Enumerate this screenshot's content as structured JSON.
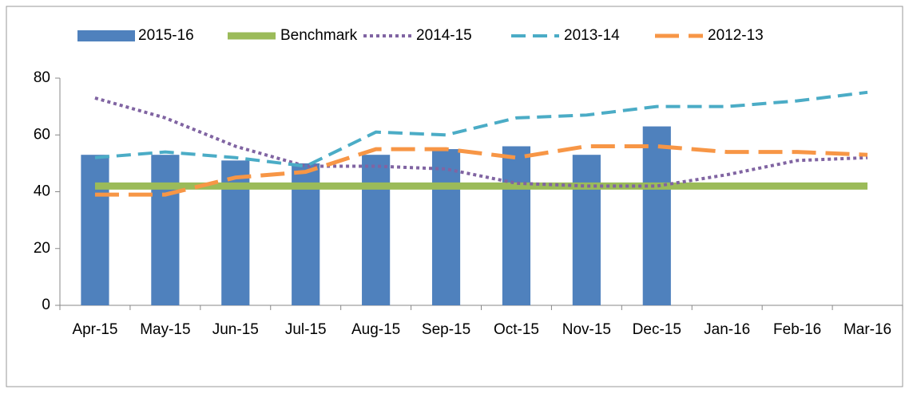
{
  "chart_data": {
    "type": "bar-line",
    "categories": [
      "Apr-15",
      "May-15",
      "Jun-15",
      "Jul-15",
      "Aug-15",
      "Sep-15",
      "Oct-15",
      "Nov-15",
      "Dec-15",
      "Jan-16",
      "Feb-16",
      "Mar-16"
    ],
    "series": [
      {
        "name": "2015-16",
        "type": "bar",
        "color": "#4f81bd",
        "values": [
          53,
          53,
          51,
          50,
          53,
          55,
          56,
          53,
          63,
          null,
          null,
          null
        ]
      },
      {
        "name": "Benchmark",
        "type": "line",
        "style": "solid",
        "color": "#9bbb59",
        "values": [
          42,
          42,
          42,
          42,
          42,
          42,
          42,
          42,
          42,
          42,
          42,
          42
        ]
      },
      {
        "name": "2014-15",
        "type": "line",
        "style": "dotted",
        "color": "#8064a2",
        "values": [
          73,
          66,
          56,
          49,
          49,
          48,
          43,
          42,
          42,
          46,
          51,
          52
        ]
      },
      {
        "name": "2013-14",
        "type": "line",
        "style": "dashed",
        "color": "#4bacc6",
        "values": [
          52,
          54,
          52,
          49,
          61,
          60,
          66,
          67,
          70,
          70,
          72,
          75
        ]
      },
      {
        "name": "2012-13",
        "type": "line",
        "style": "longdash",
        "color": "#f79646",
        "values": [
          39,
          39,
          45,
          47,
          55,
          55,
          52,
          56,
          56,
          54,
          54,
          53
        ]
      }
    ],
    "ylim": [
      0,
      80
    ],
    "yticks": [
      0,
      20,
      40,
      60,
      80
    ],
    "grid": false,
    "legend": "top"
  }
}
